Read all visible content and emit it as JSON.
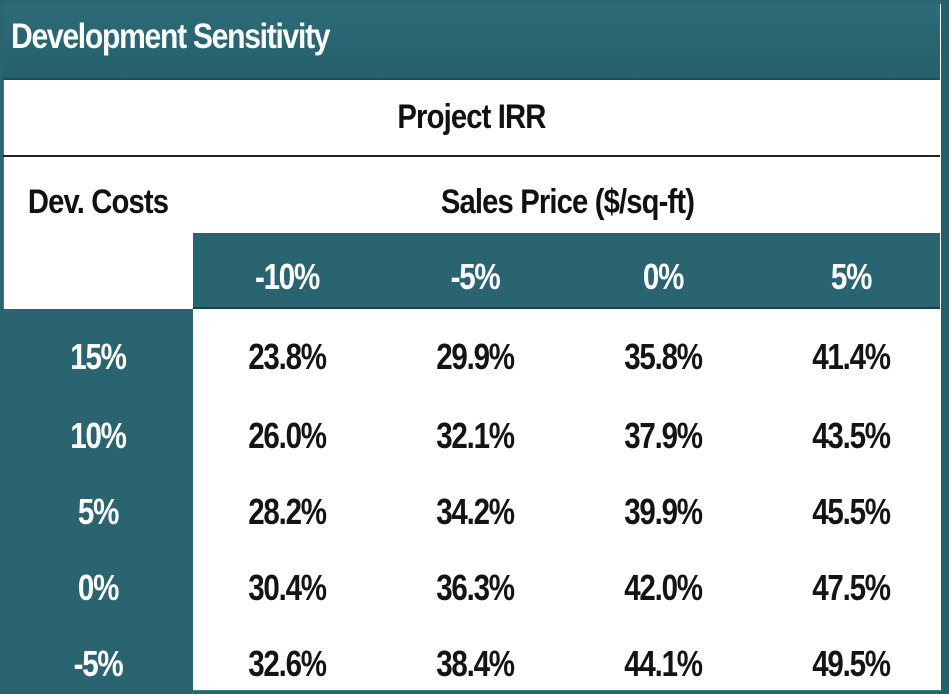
{
  "title": "Development Sensitivity",
  "table_title": "Project IRR",
  "row_axis_label": "Dev. Costs",
  "col_axis_label": "Sales Price ($/sq-ft)",
  "columns": [
    "-10%",
    "-5%",
    "0%",
    "5%"
  ],
  "rows": [
    {
      "label": "15%",
      "values": [
        "23.8%",
        "29.9%",
        "35.8%",
        "41.4%"
      ]
    },
    {
      "label": "10%",
      "values": [
        "26.0%",
        "32.1%",
        "37.9%",
        "43.5%"
      ]
    },
    {
      "label": "5%",
      "values": [
        "28.2%",
        "34.2%",
        "39.9%",
        "45.5%"
      ]
    },
    {
      "label": "0%",
      "values": [
        "30.4%",
        "36.3%",
        "42.0%",
        "47.5%"
      ]
    },
    {
      "label": "-5%",
      "values": [
        "32.6%",
        "38.4%",
        "44.1%",
        "49.5%"
      ]
    }
  ],
  "colors": {
    "header_teal": "#2a6470",
    "header_text": "#ffffff",
    "body_text": "#141414",
    "background": "#ffffff"
  }
}
